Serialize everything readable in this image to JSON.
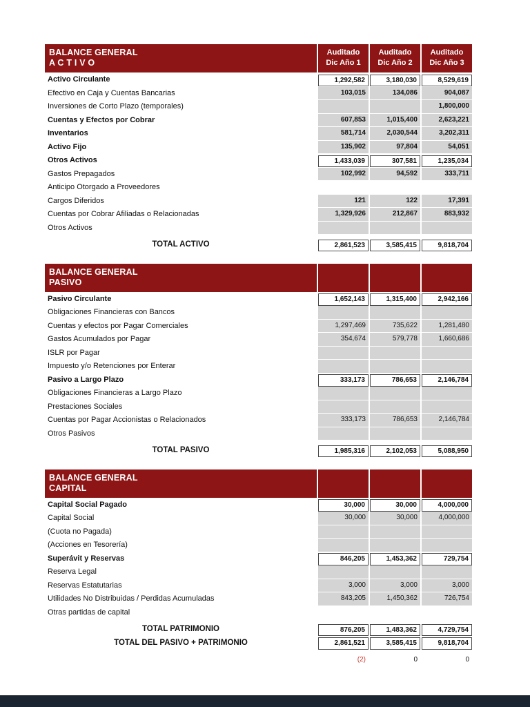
{
  "colors": {
    "header_bg": "#8e1515",
    "header_text": "#ffffff",
    "cell_gray": "#d4d4d4",
    "negative_text": "#cc3a2e",
    "footer_bar": "#1b2531"
  },
  "sections": [
    {
      "name": "activo",
      "title_line1": "BALANCE GENERAL",
      "title_line2": "A C T I V O",
      "columns": [
        {
          "line1": "Auditado",
          "line2": "Dic Año 1"
        },
        {
          "line1": "Auditado",
          "line2": "Dic Año 2"
        },
        {
          "line1": "Auditado",
          "line2": "Dic Año 3"
        }
      ],
      "rows": [
        {
          "label": "Activo Circulante",
          "label_bold": true,
          "cells": "boxed",
          "values_bold": true,
          "values": [
            "1,292,582",
            "3,180,030",
            "8,529,619"
          ]
        },
        {
          "label": "Efectivo en Caja y Cuentas Bancarias",
          "cells": "gray",
          "values_bold": true,
          "values": [
            "103,015",
            "134,086",
            "904,087"
          ]
        },
        {
          "label": "Inversiones de Corto Plazo (temporales)",
          "cells": "gray",
          "values_bold": true,
          "values": [
            "",
            "",
            "1,800,000"
          ]
        },
        {
          "label": "Cuentas y Efectos por Cobrar",
          "label_bold": true,
          "cells": "gray",
          "values_bold": true,
          "values": [
            "607,853",
            "1,015,400",
            "2,623,221"
          ]
        },
        {
          "label": "Inventarios",
          "label_bold": true,
          "cells": "gray",
          "values_bold": true,
          "values": [
            "581,714",
            "2,030,544",
            "3,202,311"
          ]
        },
        {
          "label": "Activo Fijo",
          "label_bold": true,
          "cells": "gray",
          "values_bold": true,
          "values": [
            "135,902",
            "97,804",
            "54,051"
          ]
        },
        {
          "label": "Otros Activos",
          "label_bold": true,
          "cells": "boxed",
          "values_bold": true,
          "values": [
            "1,433,039",
            "307,581",
            "1,235,034"
          ]
        },
        {
          "label": "Gastos Prepagados",
          "cells": "gray",
          "values_bold": true,
          "values": [
            "102,992",
            "94,592",
            "333,711"
          ]
        },
        {
          "label": "Anticipo Otorgado a Proveedores",
          "cells": "none",
          "values": [
            "",
            "",
            ""
          ]
        },
        {
          "label": "Cargos Diferidos",
          "cells": "gray",
          "values_bold": true,
          "values": [
            "121",
            "122",
            "17,391"
          ]
        },
        {
          "label": "Cuentas por Cobrar Afiliadas o Relacionadas",
          "cells": "gray",
          "values_bold": true,
          "values": [
            "1,329,926",
            "212,867",
            "883,932"
          ]
        },
        {
          "label": "Otros Activos",
          "cells": "gray",
          "values": [
            "",
            "",
            ""
          ]
        },
        {
          "label": "TOTAL ACTIVO",
          "label_bold": true,
          "label_align": "center",
          "spacer_before": true,
          "cells": "boxed",
          "values_bold": true,
          "values": [
            "2,861,523",
            "3,585,415",
            "9,818,704"
          ]
        }
      ]
    },
    {
      "name": "pasivo",
      "title_line1": "BALANCE GENERAL",
      "title_line2": "PASIVO",
      "columns": [
        {
          "line1": "",
          "line2": ""
        },
        {
          "line1": "",
          "line2": ""
        },
        {
          "line1": "",
          "line2": ""
        }
      ],
      "rows": [
        {
          "label": "Pasivo Circulante",
          "label_bold": true,
          "cells": "boxed",
          "values_bold": true,
          "values": [
            "1,652,143",
            "1,315,400",
            "2,942,166"
          ]
        },
        {
          "label": "Obligaciones Financieras con Bancos",
          "cells": "gray",
          "values": [
            "",
            "",
            ""
          ]
        },
        {
          "label": "Cuentas y efectos por Pagar Comerciales",
          "cells": "gray",
          "values": [
            "1,297,469",
            "735,622",
            "1,281,480"
          ]
        },
        {
          "label": "Gastos Acumulados por Pagar",
          "cells": "gray",
          "values": [
            "354,674",
            "579,778",
            "1,660,686"
          ]
        },
        {
          "label": "ISLR por Pagar",
          "cells": "gray",
          "values": [
            "",
            "",
            ""
          ]
        },
        {
          "label": "Impuesto y/o Retenciones por Enterar",
          "cells": "gray",
          "values": [
            "",
            "",
            ""
          ]
        },
        {
          "label": "Pasivo a Largo Plazo",
          "label_bold": true,
          "cells": "boxed",
          "values_bold": true,
          "values": [
            "333,173",
            "786,653",
            "2,146,784"
          ]
        },
        {
          "label": "Obligaciones Financieras a Largo Plazo",
          "cells": "gray",
          "values": [
            "",
            "",
            ""
          ]
        },
        {
          "label": "Prestaciones Sociales",
          "cells": "gray",
          "values": [
            "",
            "",
            ""
          ]
        },
        {
          "label": "Cuentas por Pagar Accionistas o Relacionados",
          "cells": "gray",
          "values": [
            "333,173",
            "786,653",
            "2,146,784"
          ]
        },
        {
          "label": "Otros Pasivos",
          "cells": "gray",
          "values": [
            "",
            "",
            ""
          ]
        },
        {
          "label": "TOTAL PASIVO",
          "label_bold": true,
          "label_align": "center",
          "spacer_before": true,
          "cells": "boxed",
          "values_bold": true,
          "values": [
            "1,985,316",
            "2,102,053",
            "5,088,950"
          ]
        }
      ]
    },
    {
      "name": "capital",
      "title_line1": "BALANCE GENERAL",
      "title_line2": "CAPITAL",
      "columns": [
        {
          "line1": "",
          "line2": ""
        },
        {
          "line1": "",
          "line2": ""
        },
        {
          "line1": "",
          "line2": ""
        }
      ],
      "rows": [
        {
          "label": "Capital Social Pagado",
          "label_bold": true,
          "cells": "boxed",
          "values_bold": true,
          "values": [
            "30,000",
            "30,000",
            "4,000,000"
          ]
        },
        {
          "label": "Capital Social",
          "cells": "gray",
          "values": [
            "30,000",
            "30,000",
            "4,000,000"
          ]
        },
        {
          "label": "(Cuota no Pagada)",
          "cells": "gray",
          "values": [
            "",
            "",
            ""
          ]
        },
        {
          "label": "(Acciones en Tesorería)",
          "cells": "gray",
          "values": [
            "",
            "",
            ""
          ]
        },
        {
          "label": "Superávit y Reservas",
          "label_bold": true,
          "cells": "boxed",
          "values_bold": true,
          "values": [
            "846,205",
            "1,453,362",
            "729,754"
          ]
        },
        {
          "label": "Reserva Legal",
          "cells": "gray",
          "values": [
            "",
            "",
            ""
          ]
        },
        {
          "label": "Reservas Estatutarias",
          "cells": "gray",
          "values": [
            "3,000",
            "3,000",
            "3,000"
          ]
        },
        {
          "label": "Utilidades No Distribuidas / Perdidas Acumuladas",
          "cells": "gray",
          "values": [
            "843,205",
            "1,450,362",
            "726,754"
          ]
        },
        {
          "label": "Otras partidas de capital",
          "cells": "none",
          "values": [
            "",
            "",
            ""
          ]
        },
        {
          "label": "TOTAL PATRIMONIO",
          "label_bold": true,
          "label_align": "center",
          "spacer_before": true,
          "cells": "boxed",
          "values_bold": true,
          "values": [
            "876,205",
            "1,483,362",
            "4,729,754"
          ]
        },
        {
          "label": "TOTAL DEL PASIVO + PATRIMONIO",
          "label_bold": true,
          "label_align": "center",
          "cells": "boxed",
          "values_bold": true,
          "values": [
            "2,861,521",
            "3,585,415",
            "9,818,704"
          ]
        },
        {
          "label": "",
          "spacer_before": true,
          "cells": "none",
          "values": [
            "(2)",
            "0",
            "0"
          ],
          "value_styles": [
            "negative",
            "",
            ""
          ]
        }
      ]
    }
  ]
}
